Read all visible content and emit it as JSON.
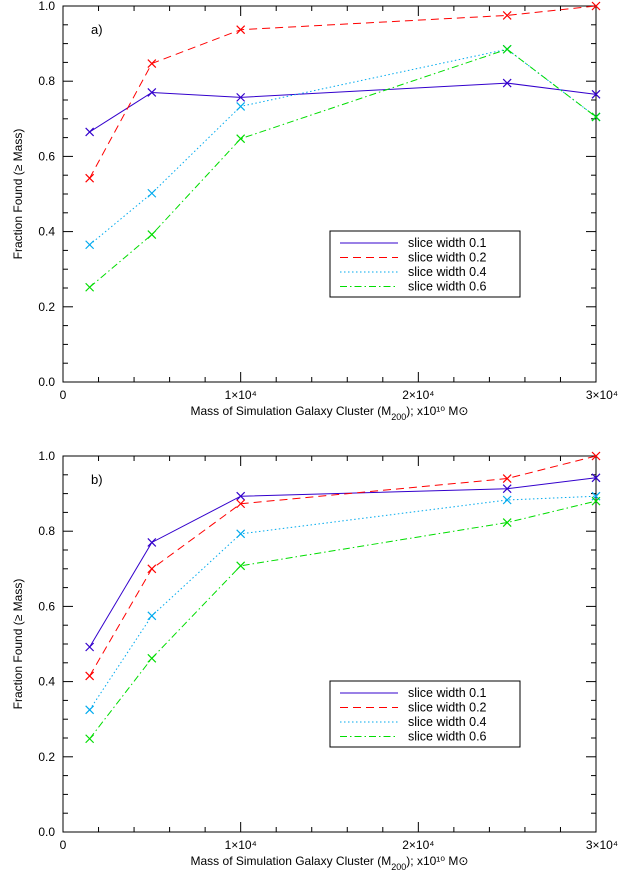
{
  "chart_data": [
    {
      "type": "line",
      "panel_label": "a)",
      "ylabel": "Fraction Found (≥ Mass)",
      "xlabel": "Mass of Simulation Galaxy Cluster (M200); x10¹⁰ M⊙",
      "xlim": [
        0,
        30000
      ],
      "ylim": [
        0.0,
        1.0
      ],
      "x_ticks": [
        {
          "value": 0,
          "label": "0"
        },
        {
          "value": 10000,
          "label": "1×10⁴"
        },
        {
          "value": 20000,
          "label": "2×10⁴"
        },
        {
          "value": 30000,
          "label": "3×10⁴"
        }
      ],
      "y_ticks": [
        {
          "value": 0.0,
          "label": "0.0"
        },
        {
          "value": 0.2,
          "label": "0.2"
        },
        {
          "value": 0.4,
          "label": "0.4"
        },
        {
          "value": 0.6,
          "label": "0.6"
        },
        {
          "value": 0.8,
          "label": "0.8"
        },
        {
          "value": 1.0,
          "label": "1.0"
        }
      ],
      "legend_position": "lower-right",
      "series": [
        {
          "name": "slice width 0.1",
          "color": "#3300cc",
          "style": "solid",
          "x": [
            1500,
            5000,
            10000,
            25000,
            30000
          ],
          "y": [
            0.665,
            0.77,
            0.757,
            0.795,
            0.765
          ]
        },
        {
          "name": "slice width 0.2",
          "color": "#ff0000",
          "style": "dashed",
          "x": [
            1500,
            5000,
            10000,
            25000,
            30000
          ],
          "y": [
            0.542,
            0.847,
            0.937,
            0.975,
            1.0
          ]
        },
        {
          "name": "slice width 0.4",
          "color": "#00aaee",
          "style": "dotted",
          "x": [
            1500,
            5000,
            10000,
            25000,
            30000
          ],
          "y": [
            0.365,
            0.502,
            0.733,
            0.885,
            0.705
          ]
        },
        {
          "name": "slice width 0.6",
          "color": "#00dd00",
          "style": "dashdot",
          "x": [
            1500,
            5000,
            10000,
            25000,
            30000
          ],
          "y": [
            0.252,
            0.392,
            0.647,
            0.885,
            0.705
          ]
        }
      ]
    },
    {
      "type": "line",
      "panel_label": "b)",
      "ylabel": "Fraction Found (≥ Mass)",
      "xlabel": "Mass of Simulation Galaxy Cluster (M200); x10¹⁰ M⊙",
      "xlim": [
        0,
        30000
      ],
      "ylim": [
        0.0,
        1.0
      ],
      "x_ticks": [
        {
          "value": 0,
          "label": "0"
        },
        {
          "value": 10000,
          "label": "1×10⁴"
        },
        {
          "value": 20000,
          "label": "2×10⁴"
        },
        {
          "value": 30000,
          "label": "3×10⁴"
        }
      ],
      "y_ticks": [
        {
          "value": 0.0,
          "label": "0.0"
        },
        {
          "value": 0.2,
          "label": "0.2"
        },
        {
          "value": 0.4,
          "label": "0.4"
        },
        {
          "value": 0.6,
          "label": "0.6"
        },
        {
          "value": 0.8,
          "label": "0.8"
        },
        {
          "value": 1.0,
          "label": "1.0"
        }
      ],
      "legend_position": "lower-right",
      "series": [
        {
          "name": "slice width 0.1",
          "color": "#3300cc",
          "style": "solid",
          "x": [
            1500,
            5000,
            10000,
            25000,
            30000
          ],
          "y": [
            0.492,
            0.77,
            0.893,
            0.913,
            0.942
          ]
        },
        {
          "name": "slice width 0.2",
          "color": "#ff0000",
          "style": "dashed",
          "x": [
            1500,
            5000,
            10000,
            25000,
            30000
          ],
          "y": [
            0.415,
            0.7,
            0.873,
            0.94,
            1.0
          ]
        },
        {
          "name": "slice width 0.4",
          "color": "#00aaee",
          "style": "dotted",
          "x": [
            1500,
            5000,
            10000,
            25000,
            30000
          ],
          "y": [
            0.325,
            0.575,
            0.793,
            0.883,
            0.893
          ]
        },
        {
          "name": "slice width 0.6",
          "color": "#00dd00",
          "style": "dashdot",
          "x": [
            1500,
            5000,
            10000,
            25000,
            30000
          ],
          "y": [
            0.248,
            0.462,
            0.708,
            0.823,
            0.88
          ]
        }
      ]
    }
  ]
}
